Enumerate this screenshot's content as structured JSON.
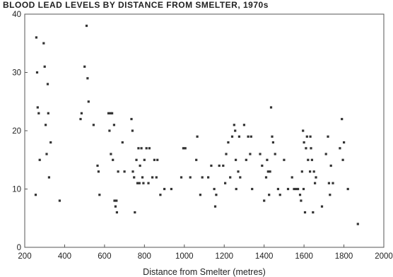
{
  "colors": {
    "background": "#ffffff",
    "plot_frame": "#555555",
    "point": "#333333",
    "text": "#222222"
  },
  "chart_data": {
    "type": "scatter",
    "title": "BLOOD LEAD LEVELS BY DISTANCE FROM SMELTER, 1970s",
    "xlabel": "Distance from Smelter (metres)",
    "ylabel": "",
    "xlim": [
      200,
      2000
    ],
    "ylim": [
      0,
      40
    ],
    "xticks": [
      200,
      400,
      600,
      800,
      1000,
      1200,
      1400,
      1600,
      1800,
      2000
    ],
    "yticks": [
      0,
      10,
      20,
      30,
      40
    ],
    "grid": false,
    "legend": "none",
    "points": [
      [
        258,
        36
      ],
      [
        262,
        30
      ],
      [
        265,
        24
      ],
      [
        270,
        23
      ],
      [
        275,
        15
      ],
      [
        255,
        9
      ],
      [
        295,
        35
      ],
      [
        300,
        31
      ],
      [
        305,
        21
      ],
      [
        310,
        16
      ],
      [
        315,
        28
      ],
      [
        318,
        23
      ],
      [
        322,
        12
      ],
      [
        330,
        18
      ],
      [
        375,
        8
      ],
      [
        480,
        22
      ],
      [
        485,
        23
      ],
      [
        500,
        31
      ],
      [
        510,
        38
      ],
      [
        515,
        29
      ],
      [
        520,
        25
      ],
      [
        545,
        21
      ],
      [
        565,
        14
      ],
      [
        570,
        13
      ],
      [
        575,
        9
      ],
      [
        620,
        23
      ],
      [
        625,
        20
      ],
      [
        630,
        23
      ],
      [
        632,
        16
      ],
      [
        638,
        23
      ],
      [
        642,
        15
      ],
      [
        648,
        21
      ],
      [
        650,
        8
      ],
      [
        655,
        7
      ],
      [
        660,
        8
      ],
      [
        662,
        6
      ],
      [
        668,
        13
      ],
      [
        690,
        18
      ],
      [
        700,
        13
      ],
      [
        735,
        22
      ],
      [
        740,
        20
      ],
      [
        742,
        13
      ],
      [
        748,
        12
      ],
      [
        752,
        6
      ],
      [
        760,
        15
      ],
      [
        765,
        11
      ],
      [
        770,
        17
      ],
      [
        775,
        11
      ],
      [
        778,
        14
      ],
      [
        785,
        17
      ],
      [
        790,
        12
      ],
      [
        795,
        11
      ],
      [
        800,
        15
      ],
      [
        810,
        17
      ],
      [
        820,
        11
      ],
      [
        825,
        17
      ],
      [
        840,
        12
      ],
      [
        850,
        15
      ],
      [
        860,
        12
      ],
      [
        865,
        15
      ],
      [
        880,
        9
      ],
      [
        900,
        10
      ],
      [
        935,
        10
      ],
      [
        985,
        12
      ],
      [
        995,
        17
      ],
      [
        1005,
        17
      ],
      [
        1030,
        12
      ],
      [
        1060,
        15
      ],
      [
        1065,
        19
      ],
      [
        1080,
        9
      ],
      [
        1090,
        12
      ],
      [
        1120,
        12
      ],
      [
        1135,
        14
      ],
      [
        1150,
        10
      ],
      [
        1155,
        7
      ],
      [
        1160,
        9
      ],
      [
        1175,
        14
      ],
      [
        1195,
        14
      ],
      [
        1205,
        11
      ],
      [
        1210,
        16
      ],
      [
        1220,
        18
      ],
      [
        1230,
        12
      ],
      [
        1240,
        19
      ],
      [
        1250,
        21
      ],
      [
        1255,
        20
      ],
      [
        1258,
        15
      ],
      [
        1260,
        10
      ],
      [
        1270,
        13
      ],
      [
        1275,
        19
      ],
      [
        1280,
        12
      ],
      [
        1300,
        21
      ],
      [
        1310,
        15
      ],
      [
        1320,
        19
      ],
      [
        1330,
        16
      ],
      [
        1335,
        19
      ],
      [
        1340,
        10
      ],
      [
        1380,
        16
      ],
      [
        1390,
        14
      ],
      [
        1400,
        8
      ],
      [
        1410,
        12
      ],
      [
        1415,
        15
      ],
      [
        1420,
        13
      ],
      [
        1425,
        9
      ],
      [
        1430,
        13
      ],
      [
        1435,
        24
      ],
      [
        1440,
        19
      ],
      [
        1445,
        18
      ],
      [
        1455,
        16
      ],
      [
        1470,
        10
      ],
      [
        1480,
        9
      ],
      [
        1500,
        15
      ],
      [
        1520,
        10
      ],
      [
        1540,
        12
      ],
      [
        1550,
        10
      ],
      [
        1560,
        10
      ],
      [
        1570,
        10
      ],
      [
        1580,
        9
      ],
      [
        1585,
        8
      ],
      [
        1590,
        13
      ],
      [
        1595,
        20
      ],
      [
        1598,
        10
      ],
      [
        1600,
        18
      ],
      [
        1605,
        6
      ],
      [
        1610,
        17
      ],
      [
        1615,
        19
      ],
      [
        1620,
        15
      ],
      [
        1630,
        13
      ],
      [
        1632,
        19
      ],
      [
        1635,
        17
      ],
      [
        1640,
        15
      ],
      [
        1645,
        6
      ],
      [
        1650,
        13
      ],
      [
        1655,
        11
      ],
      [
        1660,
        12
      ],
      [
        1690,
        7
      ],
      [
        1710,
        16
      ],
      [
        1720,
        19
      ],
      [
        1725,
        11
      ],
      [
        1730,
        9
      ],
      [
        1735,
        14
      ],
      [
        1745,
        11
      ],
      [
        1780,
        17
      ],
      [
        1790,
        22
      ],
      [
        1795,
        15
      ],
      [
        1800,
        18
      ],
      [
        1820,
        10
      ],
      [
        1870,
        4
      ]
    ]
  }
}
